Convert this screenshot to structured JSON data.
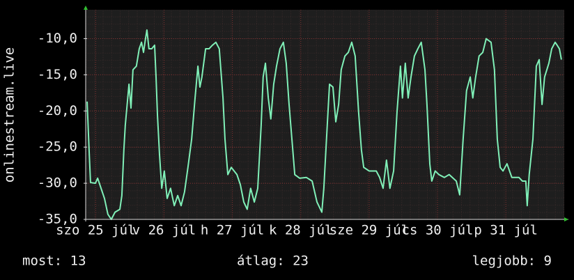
{
  "chart_data": {
    "type": "line",
    "y_label": "onlinestream.live",
    "x": [
      0.5,
      1.2,
      1.7,
      3.4,
      4.2,
      5.4,
      6.6,
      7.8,
      9.0,
      10.3,
      12.0,
      12.7,
      13.4,
      13.9,
      15.2,
      15.9,
      16.6,
      17.8,
      18.8,
      19.6,
      20.3,
      21.0,
      21.5,
      22.2,
      23.2,
      24.2,
      24.7,
      25.2,
      25.9,
      26.7,
      27.6,
      28.6,
      29.8,
      31.1,
      32.3,
      33.5,
      34.7,
      35.9,
      37.2,
      38.4,
      39.4,
      40.1,
      40.8,
      42.1,
      43.3,
      44.5,
      45.7,
      46.9,
      48.2,
      48.9,
      49.9,
      51.1,
      53.1,
      54.3,
      55.5,
      56.7,
      57.9,
      59.2,
      60.4,
      61.6,
      62.3,
      63.1,
      64.1,
      65.0,
      66.0,
      67.0,
      68.2,
      69.4,
      70.4,
      71.4,
      72.6,
      73.4,
      75.1,
      77.5,
      79.5,
      81.2,
      82.9,
      83.6,
      84.8,
      85.6,
      86.8,
      87.8,
      88.8,
      89.7,
      91.0,
      92.2,
      93.4,
      94.6,
      95.8,
      96.8,
      97.6,
      99.5,
      102.0,
      103.2,
      104.4,
      105.6,
      106.8,
      108.1,
      109.3,
      110.5,
      111.2,
      112.2,
      113.2,
      114.2,
      115.4,
      116.6,
      117.8,
      119.1,
      119.8,
      120.8,
      121.5,
      122.7,
      124.0,
      125.9,
      127.6,
      130.1,
      131.3,
      132.5,
      133.7,
      135.0,
      135.9,
      136.9,
      138.1,
      139.4,
      140.6,
      142.3,
      143.5,
      144.5,
      145.5,
      146.5,
      147.9,
      149.6,
      152.1,
      153.3,
      154.5,
      155.0,
      155.7,
      157.0,
      158.2,
      159.2,
      160.2,
      161.1,
      162.6,
      163.6,
      164.8,
      165.5,
      166.3,
      167.0
    ],
    "series": [
      {
        "name": "onlinestream.live",
        "color": "#80f0b8",
        "values": [
          -18.7,
          -25.4,
          -29.9,
          -30,
          -29.3,
          -30.7,
          -32.1,
          -34.3,
          -35,
          -34,
          -33.6,
          -31.7,
          -25.4,
          -22,
          -16.3,
          -19.6,
          -14.3,
          -13.8,
          -11.4,
          -10.5,
          -11.9,
          -10,
          -8.8,
          -11.4,
          -11.4,
          -10.9,
          -15.3,
          -20.6,
          -25.9,
          -30.7,
          -28.3,
          -32.1,
          -30.7,
          -33.1,
          -31.7,
          -33.1,
          -31.2,
          -27.8,
          -23.9,
          -18.2,
          -13.8,
          -16.7,
          -15.3,
          -11.4,
          -11.4,
          -10.9,
          -10.5,
          -11.4,
          -18.2,
          -23.9,
          -28.8,
          -27.8,
          -28.8,
          -30.2,
          -32.6,
          -33.6,
          -30.7,
          -32.6,
          -30.7,
          -22,
          -15.3,
          -13.4,
          -18.2,
          -21.1,
          -16.3,
          -13.8,
          -11.4,
          -10.5,
          -13.4,
          -19.1,
          -24.9,
          -28.8,
          -29.3,
          -29.2,
          -29.7,
          -32.6,
          -34,
          -30.7,
          -22,
          -16.3,
          -16.7,
          -21.5,
          -19.1,
          -14.3,
          -12.4,
          -11.9,
          -10.5,
          -12.4,
          -20.1,
          -25.4,
          -27.8,
          -28.3,
          -28.3,
          -29.2,
          -30.7,
          -26.8,
          -30.7,
          -28.3,
          -20.1,
          -13.8,
          -18.2,
          -13.4,
          -18.2,
          -15.3,
          -12.4,
          -11.4,
          -10.5,
          -14.3,
          -19.1,
          -27.3,
          -29.7,
          -28.3,
          -28.8,
          -29.2,
          -28.8,
          -29.7,
          -31.6,
          -23.9,
          -17.2,
          -15.3,
          -18.2,
          -15.3,
          -12.4,
          -11.9,
          -10,
          -10.5,
          -14.3,
          -23.9,
          -27.8,
          -28.3,
          -27.3,
          -29.2,
          -29.2,
          -29.7,
          -29.7,
          -33.1,
          -28.8,
          -23.9,
          -13.8,
          -12.9,
          -19.1,
          -15.3,
          -13.4,
          -11.4,
          -10.5,
          -10.9,
          -11.4,
          -12.9
        ]
      }
    ],
    "xlim": [
      0,
      168
    ],
    "xticks": [
      {
        "value": 3.5,
        "label": "szo 25 júl"
      },
      {
        "value": 27.5,
        "label": "v 26 júl"
      },
      {
        "value": 51.5,
        "label": "h 27 júl"
      },
      {
        "value": 75.5,
        "label": "k 28 júl"
      },
      {
        "value": 99.5,
        "label": "sze 29 júl"
      },
      {
        "value": 123.5,
        "label": "cs 30 júl"
      },
      {
        "value": 147.5,
        "label": "p 31 júl"
      }
    ],
    "ylim": [
      -35,
      -6
    ],
    "yticks": [
      {
        "value": -35,
        "label": "-35,0"
      },
      {
        "value": -30,
        "label": "-30,0"
      },
      {
        "value": -25,
        "label": "-25,0"
      },
      {
        "value": -20,
        "label": "-20,0"
      },
      {
        "value": -15,
        "label": "-15,0"
      },
      {
        "value": -10,
        "label": "-10,0"
      }
    ],
    "grid": true,
    "stats": [
      "most: 13",
      "átlag: 23",
      "legjobb: 9"
    ]
  }
}
